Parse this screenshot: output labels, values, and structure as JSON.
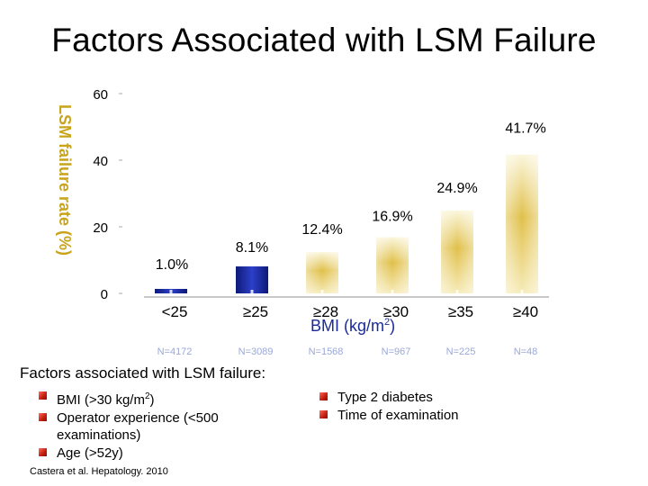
{
  "title": "Factors Associated with LSM Failure",
  "chart_data": {
    "type": "bar",
    "ylabel": "LSM failure rate (%)",
    "xlabel": "BMI (kg/m",
    "xlabel_sup": "2",
    "xlabel_end": ")",
    "ylim": [
      0,
      60
    ],
    "yticks": [
      "0",
      "20",
      "40",
      "60"
    ],
    "categories": [
      "<25",
      "≥25",
      "≥28",
      "≥30",
      "≥35",
      "≥40"
    ],
    "values": [
      1.0,
      8.1,
      12.4,
      16.9,
      24.9,
      41.7
    ],
    "value_labels": [
      "1.0%",
      "8.1%",
      "12.4%",
      "16.9%",
      "24.9%",
      "41.7%"
    ],
    "counts": [
      "N=4172",
      "N=3089",
      "N=1568",
      "N=967",
      "N=225",
      "N=48"
    ],
    "bar_colors": [
      "blue",
      "blue",
      "gold",
      "gold",
      "gold",
      "gold"
    ],
    "grid": false,
    "legend": "none"
  },
  "factors": {
    "heading": "Factors associated with LSM failure:",
    "left": [
      {
        "pre": "BMI (>30 kg/m",
        "sup": "2",
        "post": ")"
      },
      {
        "pre": "Operator experience (<500 examinations)",
        "sup": "",
        "post": ""
      },
      {
        "pre": "Age (>52y)",
        "sup": "",
        "post": ""
      }
    ],
    "right": [
      {
        "pre": "Type 2 diabetes",
        "sup": "",
        "post": ""
      },
      {
        "pre": "Time of examination",
        "sup": "",
        "post": ""
      }
    ]
  },
  "citation": "Castera et al. Hepatology. 2010"
}
